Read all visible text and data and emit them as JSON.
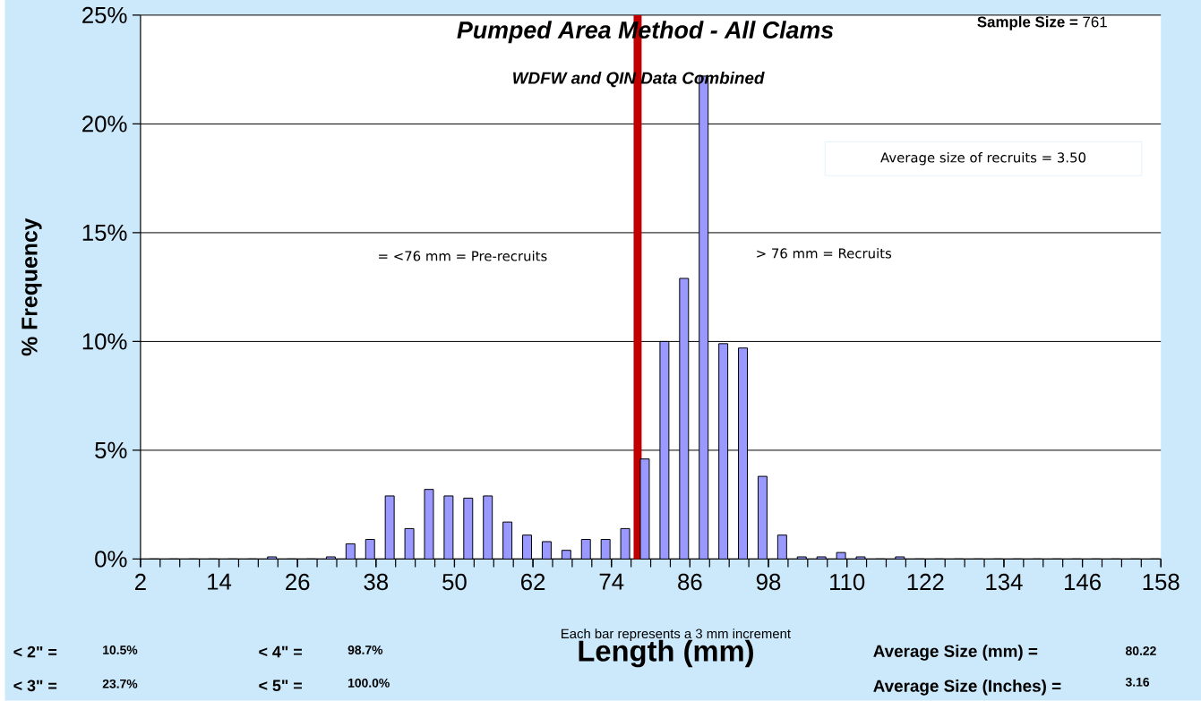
{
  "chart_data": {
    "type": "histogram",
    "title": "Pumped Area Method - All Clams",
    "subtitle": "WDFW and QIN Data Combined",
    "xlabel": "Length (mm)",
    "ylabel": "% Frequency",
    "bins": [
      2,
      5,
      8,
      11,
      14,
      17,
      20,
      23,
      26,
      29,
      32,
      35,
      38,
      41,
      44,
      47,
      50,
      53,
      56,
      59,
      62,
      65,
      68,
      71,
      74,
      77,
      80,
      83,
      86,
      89,
      92,
      95,
      98,
      101,
      104,
      107,
      110,
      113,
      116,
      119,
      122,
      125,
      128,
      131,
      134,
      137,
      140,
      143,
      146,
      149,
      152,
      155,
      158
    ],
    "values": [
      0,
      0,
      0,
      0,
      0,
      0,
      0.1,
      0,
      0,
      0.1,
      0.7,
      0.9,
      2.9,
      1.4,
      3.2,
      2.9,
      2.8,
      2.9,
      1.7,
      1.1,
      0.8,
      0.4,
      0.9,
      0.9,
      1.4,
      4.6,
      10.0,
      12.9,
      22.2,
      9.9,
      9.7,
      3.8,
      1.1,
      0.1,
      0.1,
      0.3,
      0.1,
      0,
      0.1,
      0,
      0,
      0,
      0,
      0,
      0,
      0,
      0,
      0,
      0,
      0,
      0,
      0
    ],
    "color": "#9999ff",
    "xlim": [
      2,
      158
    ],
    "xticks": [
      2,
      14,
      26,
      38,
      50,
      62,
      74,
      86,
      98,
      110,
      122,
      134,
      146,
      158
    ],
    "ylim": [
      0,
      25
    ],
    "yticks": [
      {
        "value": 0,
        "label": "0%"
      },
      {
        "value": 5,
        "label": "5%"
      },
      {
        "value": 10,
        "label": "10%"
      },
      {
        "value": 15,
        "label": "15%"
      },
      {
        "value": 20,
        "label": "20%"
      },
      {
        "value": 25,
        "label": "25%"
      }
    ],
    "grid": "y",
    "ref_lines": [
      {
        "axis": "x",
        "value": 78,
        "color": "#c00000"
      }
    ],
    "annotations": [
      "**Sample Size =** 761",
      "Average size of recruits =  3.50",
      "= <76 mm = Pre-recruits",
      "> 76 mm = Recruits",
      "Each bar represents a 3 mm increment",
      "< 2\" =",
      "10.5%",
      "< 3\" =",
      "23.7%",
      "< 4\" =",
      "98.7%",
      "< 5\" =",
      "100.0%",
      "Average Size (mm) =",
      "80.22",
      "Average Size (Inches) =",
      "3.16"
    ]
  }
}
